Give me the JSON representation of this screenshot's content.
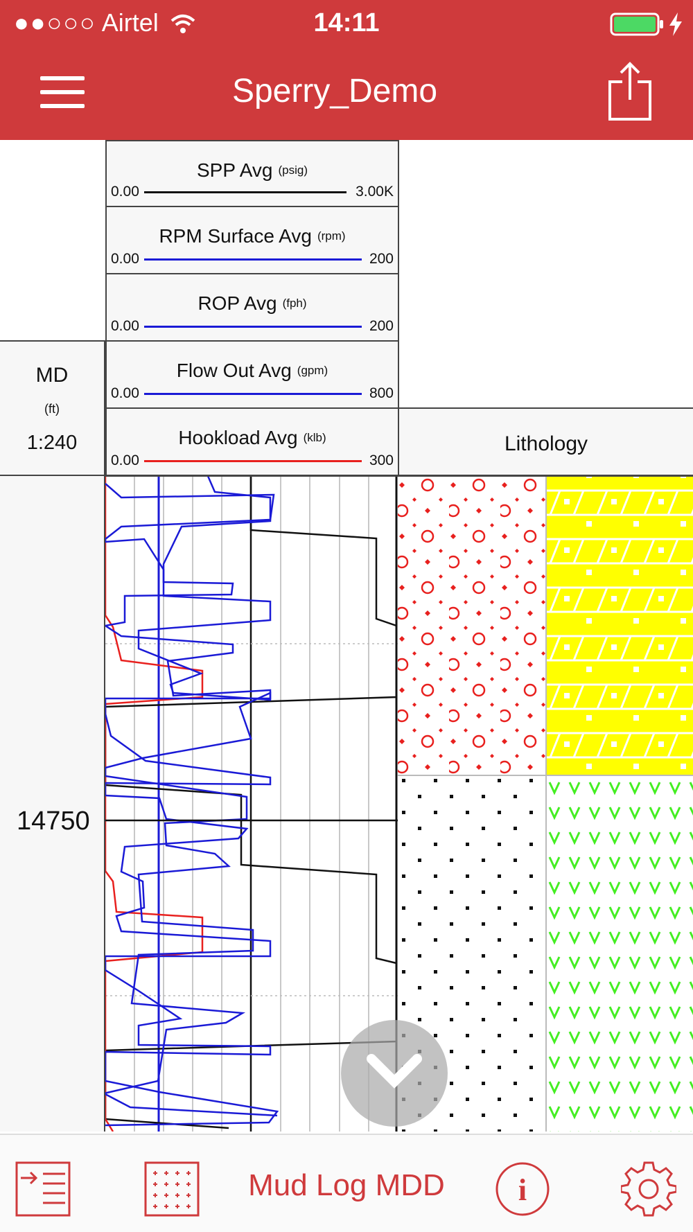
{
  "status_bar": {
    "signal_dots": "●●○○○",
    "carrier": "Airtel",
    "time": "14:11"
  },
  "navbar": {
    "title": "Sperry_Demo",
    "menu_icon": "hamburger-menu-icon",
    "share_icon": "share-icon"
  },
  "tracks": [
    {
      "name": "SPP Avg",
      "unit": "(psig)",
      "min": "0.00",
      "max": "3.00K",
      "color": "#111111"
    },
    {
      "name": "RPM Surface Avg",
      "unit": "(rpm)",
      "min": "0.00",
      "max": "200",
      "color": "#1a1ad6"
    },
    {
      "name": "ROP Avg",
      "unit": "(fph)",
      "min": "0.00",
      "max": "200",
      "color": "#1a1ad6"
    },
    {
      "name": "Flow Out Avg",
      "unit": "(gpm)",
      "min": "0.00",
      "max": "800",
      "color": "#1a1ad6"
    },
    {
      "name": "Hookload Avg",
      "unit": "(klb)",
      "min": "0.00",
      "max": "300",
      "color": "#e8201e"
    }
  ],
  "depth_header": {
    "label": "MD",
    "unit": "(ft)",
    "scale": "1:240"
  },
  "lithology_header": {
    "label": "Lithology"
  },
  "depth_marker": "14750",
  "lithology_patterns": {
    "upper_left": "red-circles-dots",
    "upper_right": "yellow-brick",
    "lower_left": "black-dots",
    "lower_right": "green-v"
  },
  "bottom_bar": {
    "mode_label": "Mud Log MDD",
    "icons": [
      "indent-list-icon",
      "grid-pattern-icon",
      "info-icon",
      "gear-icon"
    ]
  },
  "colors": {
    "brand_red": "#cf3a3c",
    "curve_blue": "#1a1ad6",
    "curve_red": "#e8201e",
    "curve_black": "#111111"
  }
}
